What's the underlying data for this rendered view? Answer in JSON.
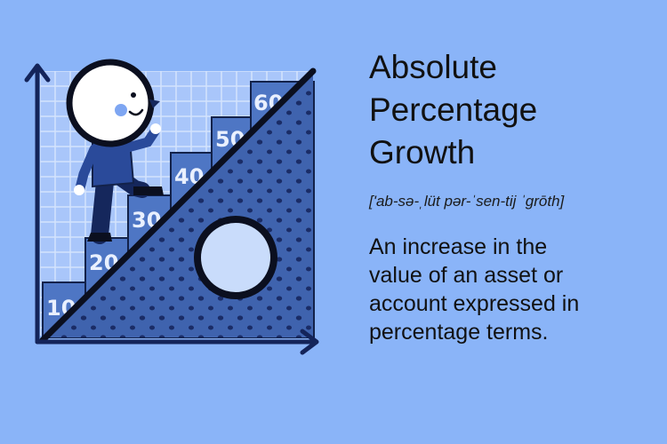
{
  "title_lines": [
    "Absolute",
    "Percentage",
    "Growth"
  ],
  "pronunciation": "['ab-sə-ˌlüt pər-ˈsen-tij ˈgrōth]",
  "definition_lines": [
    "An increase in the",
    "value of an asset or",
    "account expressed in",
    "percentage terms."
  ],
  "steps": [
    "10",
    "20",
    "30",
    "40",
    "50",
    "60"
  ],
  "icons": {
    "illustration": "stairs-growth-illustration",
    "character": "person-climbing-icon",
    "circle": "circle-icon"
  },
  "colors": {
    "background": "#8ab4f8",
    "dark_navy": "#0f1f45",
    "mid_blue": "#4468b4",
    "grid": "#c2d6fb"
  }
}
